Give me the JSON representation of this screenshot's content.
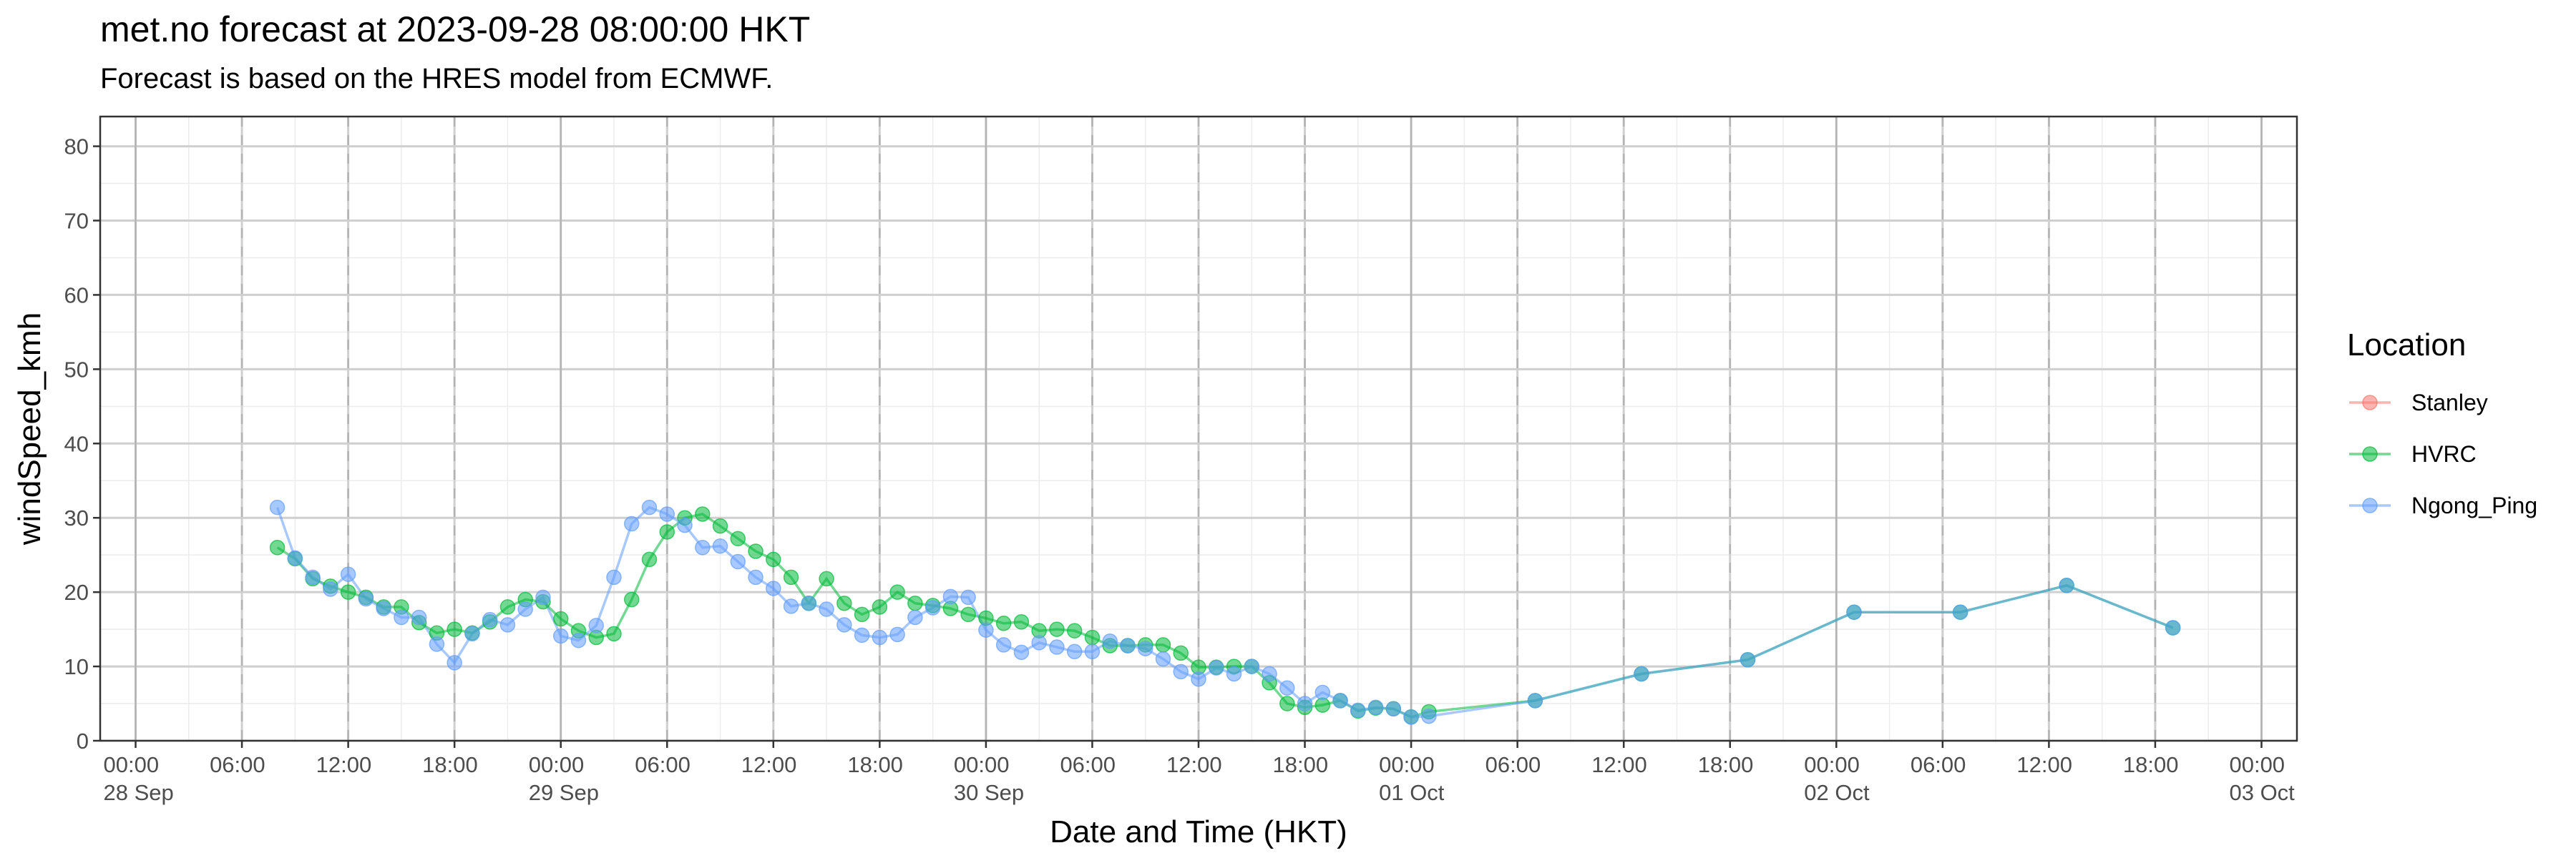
{
  "title": "met.no forecast at 2023-09-28 08:00:00 HKT",
  "subtitle": "Forecast is based on the HRES model from ECMWF.",
  "chart_data": {
    "type": "line",
    "xlabel": "Date and Time (HKT)",
    "ylabel": "windSpeed_kmh",
    "ylim": [
      0,
      84
    ],
    "xlim": [
      "2023-09-27 22:00",
      "2023-10-03 02:00"
    ],
    "y_ticks": [
      0,
      10,
      20,
      30,
      40,
      50,
      60,
      70,
      80
    ],
    "x_ticks": [
      {
        "t": "2023-09-28 00:00",
        "time": "00:00",
        "date": "28 Sep"
      },
      {
        "t": "2023-09-28 06:00",
        "time": "06:00",
        "date": ""
      },
      {
        "t": "2023-09-28 12:00",
        "time": "12:00",
        "date": ""
      },
      {
        "t": "2023-09-28 18:00",
        "time": "18:00",
        "date": ""
      },
      {
        "t": "2023-09-29 00:00",
        "time": "00:00",
        "date": "29 Sep"
      },
      {
        "t": "2023-09-29 06:00",
        "time": "06:00",
        "date": ""
      },
      {
        "t": "2023-09-29 12:00",
        "time": "12:00",
        "date": ""
      },
      {
        "t": "2023-09-29 18:00",
        "time": "18:00",
        "date": ""
      },
      {
        "t": "2023-09-30 00:00",
        "time": "00:00",
        "date": "30 Sep"
      },
      {
        "t": "2023-09-30 06:00",
        "time": "06:00",
        "date": ""
      },
      {
        "t": "2023-09-30 12:00",
        "time": "12:00",
        "date": ""
      },
      {
        "t": "2023-09-30 18:00",
        "time": "18:00",
        "date": ""
      },
      {
        "t": "2023-10-01 00:00",
        "time": "00:00",
        "date": "01 Oct"
      },
      {
        "t": "2023-10-01 06:00",
        "time": "06:00",
        "date": ""
      },
      {
        "t": "2023-10-01 12:00",
        "time": "12:00",
        "date": ""
      },
      {
        "t": "2023-10-01 18:00",
        "time": "18:00",
        "date": ""
      },
      {
        "t": "2023-10-02 00:00",
        "time": "00:00",
        "date": "02 Oct"
      },
      {
        "t": "2023-10-02 06:00",
        "time": "06:00",
        "date": ""
      },
      {
        "t": "2023-10-02 12:00",
        "time": "12:00",
        "date": ""
      },
      {
        "t": "2023-10-02 18:00",
        "time": "18:00",
        "date": ""
      },
      {
        "t": "2023-10-03 00:00",
        "time": "00:00",
        "date": "03 Oct"
      }
    ],
    "grid": true,
    "legend": {
      "title": "Location",
      "placement": "right"
    },
    "series": [
      {
        "name": "Stanley",
        "color": "#F8766D",
        "x": [],
        "values": []
      },
      {
        "name": "HVRC",
        "color": "#00BA38",
        "x": [
          "2023-09-28 08:00",
          "2023-09-28 09:00",
          "2023-09-28 10:00",
          "2023-09-28 11:00",
          "2023-09-28 12:00",
          "2023-09-28 13:00",
          "2023-09-28 14:00",
          "2023-09-28 15:00",
          "2023-09-28 16:00",
          "2023-09-28 17:00",
          "2023-09-28 18:00",
          "2023-09-28 19:00",
          "2023-09-28 20:00",
          "2023-09-28 21:00",
          "2023-09-28 22:00",
          "2023-09-28 23:00",
          "2023-09-29 00:00",
          "2023-09-29 01:00",
          "2023-09-29 02:00",
          "2023-09-29 03:00",
          "2023-09-29 04:00",
          "2023-09-29 05:00",
          "2023-09-29 06:00",
          "2023-09-29 07:00",
          "2023-09-29 08:00",
          "2023-09-29 09:00",
          "2023-09-29 10:00",
          "2023-09-29 11:00",
          "2023-09-29 12:00",
          "2023-09-29 13:00",
          "2023-09-29 14:00",
          "2023-09-29 15:00",
          "2023-09-29 16:00",
          "2023-09-29 17:00",
          "2023-09-29 18:00",
          "2023-09-29 19:00",
          "2023-09-29 20:00",
          "2023-09-29 21:00",
          "2023-09-29 22:00",
          "2023-09-29 23:00",
          "2023-09-30 00:00",
          "2023-09-30 01:00",
          "2023-09-30 02:00",
          "2023-09-30 03:00",
          "2023-09-30 04:00",
          "2023-09-30 05:00",
          "2023-09-30 06:00",
          "2023-09-30 07:00",
          "2023-09-30 08:00",
          "2023-09-30 09:00",
          "2023-09-30 10:00",
          "2023-09-30 11:00",
          "2023-09-30 12:00",
          "2023-09-30 13:00",
          "2023-09-30 14:00",
          "2023-09-30 15:00",
          "2023-09-30 16:00",
          "2023-09-30 17:00",
          "2023-09-30 18:00",
          "2023-09-30 19:00",
          "2023-09-30 20:00",
          "2023-09-30 21:00",
          "2023-09-30 22:00",
          "2023-09-30 23:00",
          "2023-10-01 00:00",
          "2023-10-01 01:00",
          "2023-10-01 07:00",
          "2023-10-01 13:00",
          "2023-10-01 19:00",
          "2023-10-02 01:00",
          "2023-10-02 07:00",
          "2023-10-02 13:00",
          "2023-10-02 19:00"
        ],
        "values": [
          26.0,
          24.5,
          21.8,
          20.8,
          20.0,
          19.3,
          18.0,
          18.0,
          15.9,
          14.5,
          15.0,
          14.5,
          16.0,
          18.0,
          19.0,
          18.7,
          16.4,
          14.8,
          13.9,
          14.4,
          19.0,
          24.4,
          28.1,
          30.0,
          30.5,
          28.9,
          27.2,
          25.5,
          24.4,
          22.0,
          18.5,
          21.8,
          18.5,
          17.0,
          18.0,
          20.0,
          18.5,
          18.2,
          17.8,
          17.0,
          16.5,
          15.8,
          16.0,
          14.8,
          15.0,
          14.8,
          13.9,
          12.8,
          12.8,
          12.9,
          12.9,
          11.8,
          9.9,
          9.9,
          10.0,
          10.0,
          7.8,
          5.0,
          4.5,
          4.8,
          5.4,
          4.0,
          4.4,
          4.3,
          3.2,
          3.9,
          5.4,
          9.0,
          10.9,
          17.3,
          17.3,
          20.9,
          15.2
        ]
      },
      {
        "name": "Ngong_Ping",
        "color": "#619CFF",
        "x": [
          "2023-09-28 08:00",
          "2023-09-28 09:00",
          "2023-09-28 10:00",
          "2023-09-28 11:00",
          "2023-09-28 12:00",
          "2023-09-28 13:00",
          "2023-09-28 14:00",
          "2023-09-28 15:00",
          "2023-09-28 16:00",
          "2023-09-28 17:00",
          "2023-09-28 18:00",
          "2023-09-28 19:00",
          "2023-09-28 20:00",
          "2023-09-28 21:00",
          "2023-09-28 22:00",
          "2023-09-28 23:00",
          "2023-09-29 00:00",
          "2023-09-29 01:00",
          "2023-09-29 02:00",
          "2023-09-29 03:00",
          "2023-09-29 04:00",
          "2023-09-29 05:00",
          "2023-09-29 06:00",
          "2023-09-29 07:00",
          "2023-09-29 08:00",
          "2023-09-29 09:00",
          "2023-09-29 10:00",
          "2023-09-29 11:00",
          "2023-09-29 12:00",
          "2023-09-29 13:00",
          "2023-09-29 14:00",
          "2023-09-29 15:00",
          "2023-09-29 16:00",
          "2023-09-29 17:00",
          "2023-09-29 18:00",
          "2023-09-29 19:00",
          "2023-09-29 20:00",
          "2023-09-29 21:00",
          "2023-09-29 22:00",
          "2023-09-29 23:00",
          "2023-09-30 00:00",
          "2023-09-30 01:00",
          "2023-09-30 02:00",
          "2023-09-30 03:00",
          "2023-09-30 04:00",
          "2023-09-30 05:00",
          "2023-09-30 06:00",
          "2023-09-30 07:00",
          "2023-09-30 08:00",
          "2023-09-30 09:00",
          "2023-09-30 10:00",
          "2023-09-30 11:00",
          "2023-09-30 12:00",
          "2023-09-30 13:00",
          "2023-09-30 14:00",
          "2023-09-30 15:00",
          "2023-09-30 16:00",
          "2023-09-30 17:00",
          "2023-09-30 18:00",
          "2023-09-30 19:00",
          "2023-09-30 20:00",
          "2023-09-30 21:00",
          "2023-09-30 22:00",
          "2023-09-30 23:00",
          "2023-10-01 00:00",
          "2023-10-01 01:00",
          "2023-10-01 07:00",
          "2023-10-01 13:00",
          "2023-10-01 19:00",
          "2023-10-02 01:00",
          "2023-10-02 07:00",
          "2023-10-02 13:00",
          "2023-10-02 19:00"
        ],
        "values": [
          31.4,
          24.6,
          22.0,
          20.4,
          22.4,
          19.1,
          17.8,
          16.6,
          16.6,
          13.0,
          10.5,
          14.4,
          16.3,
          15.6,
          17.7,
          19.3,
          14.1,
          13.5,
          15.5,
          22.0,
          29.2,
          31.4,
          30.5,
          29.0,
          26.0,
          26.2,
          24.1,
          22.0,
          20.5,
          18.1,
          18.5,
          17.7,
          15.6,
          14.2,
          13.9,
          14.3,
          16.6,
          17.9,
          19.4,
          19.3,
          14.9,
          12.9,
          11.9,
          13.2,
          12.6,
          12.0,
          12.0,
          13.4,
          12.8,
          12.4,
          11.0,
          9.3,
          8.3,
          9.8,
          9.0,
          10.0,
          9.0,
          7.1,
          5.0,
          6.5,
          5.4,
          4.1,
          4.5,
          4.3,
          3.2,
          3.3,
          5.4,
          9.0,
          10.9,
          17.3,
          17.3,
          20.9,
          15.2
        ]
      }
    ]
  }
}
